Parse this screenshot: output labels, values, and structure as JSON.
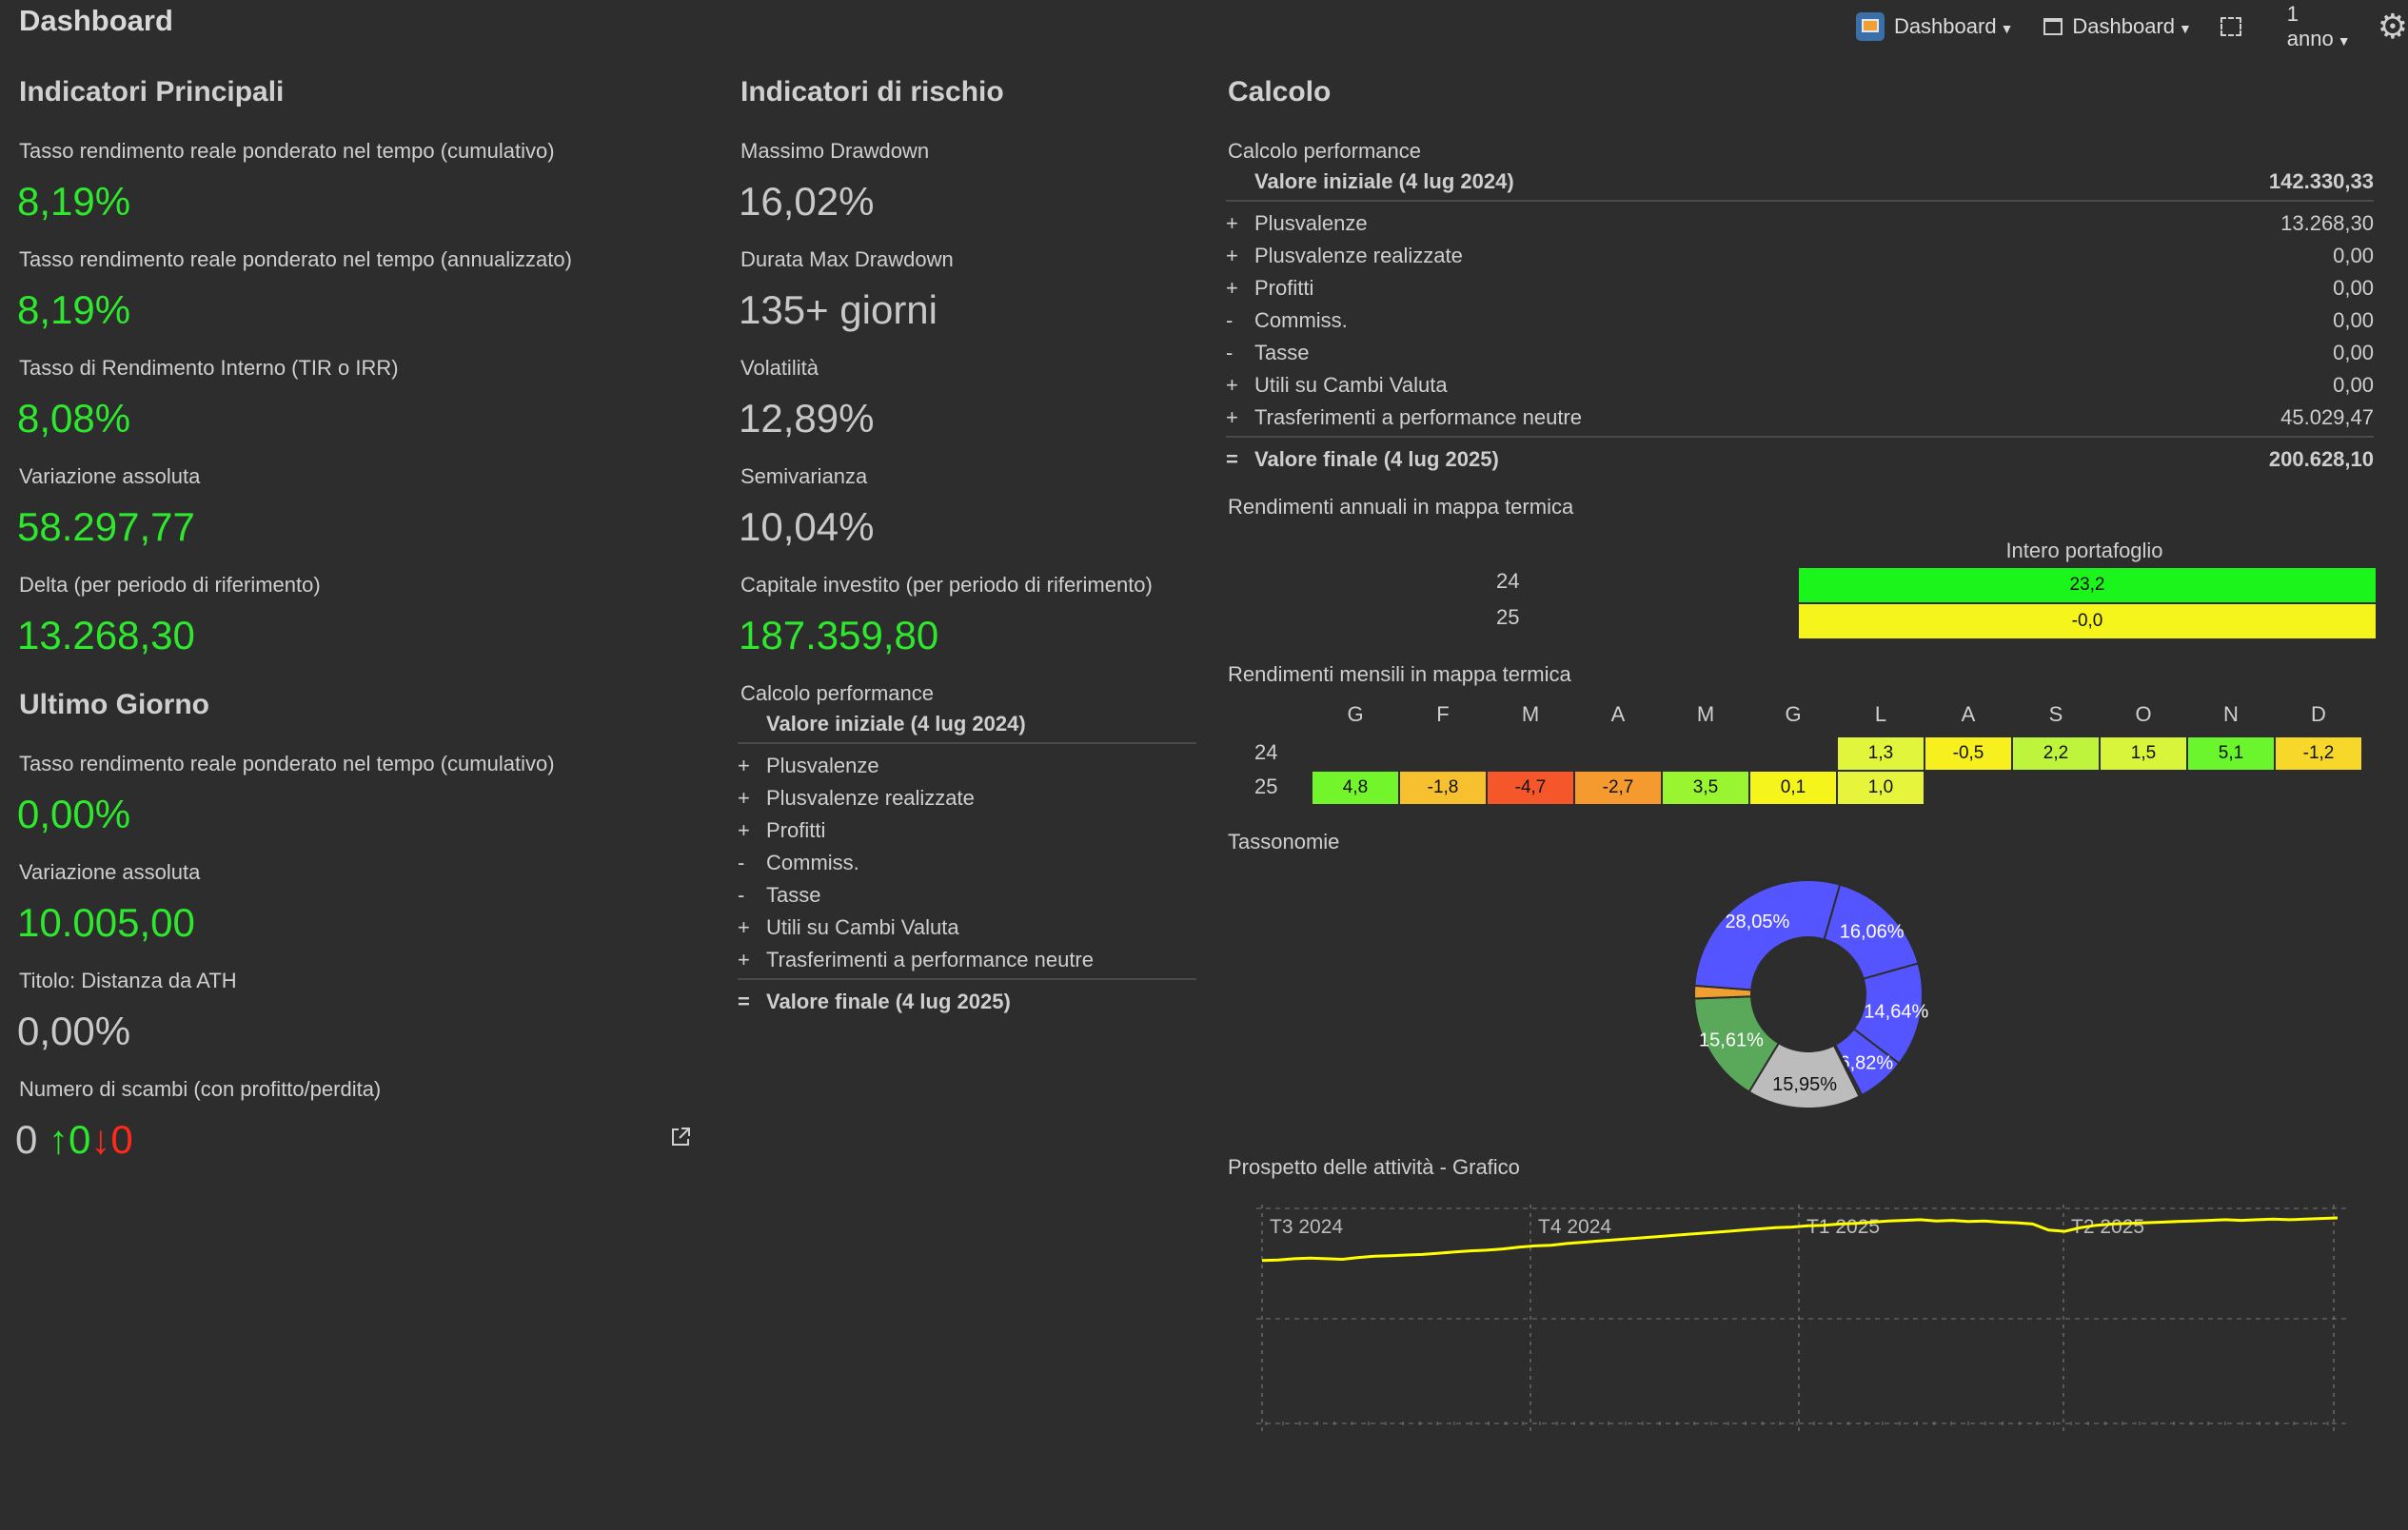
{
  "header": {
    "title": "Dashboard",
    "view1_label": "Dashboard",
    "view2_label": "Dashboard",
    "period_label": "1 anno"
  },
  "col1": {
    "section_title": "Indicatori Principali",
    "items": [
      {
        "label": "Tasso rendimento reale ponderato nel tempo (cumulativo)",
        "value": "8,19%"
      },
      {
        "label": "Tasso rendimento reale ponderato nel tempo (annualizzato)",
        "value": "8,19%"
      },
      {
        "label": "Tasso di Rendimento Interno (TIR o IRR)",
        "value": "8,08%"
      },
      {
        "label": "Variazione assoluta",
        "value": "58.297,77"
      },
      {
        "label": "Delta (per periodo di riferimento)",
        "value": "13.268,30"
      }
    ],
    "section2_title": "Ultimo Giorno",
    "items2": [
      {
        "label": "Tasso rendimento reale ponderato nel tempo (cumulativo)",
        "value": "0,00%"
      },
      {
        "label": "Variazione assoluta",
        "value": "10.005,00"
      },
      {
        "label": "Titolo: Distanza da ATH",
        "value": "0,00%"
      },
      {
        "label": "Numero di scambi (con profitto/perdita)"
      }
    ],
    "trades": {
      "total": "0",
      "up": "↑0",
      "down": "↓0"
    }
  },
  "col2": {
    "section_title": "Indicatori di rischio",
    "items": [
      {
        "label": "Massimo Drawdown",
        "value": "16,02%"
      },
      {
        "label": "Durata Max Drawdown",
        "value": "135+ giorni"
      },
      {
        "label": "Volatilità",
        "value": "12,89%"
      },
      {
        "label": "Semivarianza",
        "value": "10,04%"
      },
      {
        "label": "Capitale investito (per periodo di riferimento)",
        "value": "187.359,80"
      }
    ],
    "perf_title": "Calcolo performance"
  },
  "perf": {
    "initial": {
      "label": "Valore iniziale (4 lug 2024)",
      "value": "142.330,33"
    },
    "rows": [
      {
        "sign": "+",
        "label": "Plusvalenze",
        "value": "13.268,30"
      },
      {
        "sign": "+",
        "label": "Plusvalenze realizzate",
        "value": "0,00"
      },
      {
        "sign": "+",
        "label": "Profitti",
        "value": "0,00"
      },
      {
        "sign": "-",
        "label": "Commiss.",
        "value": "0,00"
      },
      {
        "sign": "-",
        "label": "Tasse",
        "value": "0,00"
      },
      {
        "sign": "+",
        "label": "Utili su Cambi Valuta",
        "value": "0,00"
      },
      {
        "sign": "+",
        "label": "Trasferimenti a performance neutre",
        "value": "45.029,47"
      }
    ],
    "final": {
      "sign": "=",
      "label": "Valore finale (4 lug 2025)",
      "value": "200.628,10"
    }
  },
  "col3": {
    "section_title": "Calcolo",
    "perf_title": "Calcolo performance",
    "annual_title": "Rendimenti annuali in mappa termica",
    "annual_header": "Intero portafoglio",
    "annual_rows": [
      {
        "year": "24",
        "value": "23,2",
        "color": "#1cf51c"
      },
      {
        "year": "25",
        "value": "-0,0",
        "color": "#f5f51c"
      }
    ],
    "monthly_title": "Rendimenti mensili in mappa termica",
    "months": [
      "G",
      "F",
      "M",
      "A",
      "M",
      "G",
      "L",
      "A",
      "S",
      "O",
      "N",
      "D"
    ],
    "monthly_rows": [
      {
        "year": "24",
        "cells": [
          null,
          null,
          null,
          null,
          null,
          null,
          {
            "v": "1,3",
            "c": "#e0f53c"
          },
          {
            "v": "-0,5",
            "c": "#f7f01e"
          },
          {
            "v": "2,2",
            "c": "#bef53c"
          },
          {
            "v": "1,5",
            "c": "#d8f53c"
          },
          {
            "v": "5,1",
            "c": "#6af52c"
          },
          {
            "v": "-1,2",
            "c": "#f7d82a"
          }
        ]
      },
      {
        "year": "25",
        "cells": [
          {
            "v": "4,8",
            "c": "#72f52a"
          },
          {
            "v": "-1,8",
            "c": "#f7c02e"
          },
          {
            "v": "-4,7",
            "c": "#f5562a"
          },
          {
            "v": "-2,7",
            "c": "#f59a2e"
          },
          {
            "v": "3,5",
            "c": "#98f530"
          },
          {
            "v": "0,1",
            "c": "#f5f51c"
          },
          {
            "v": "1,0",
            "c": "#e6f53c"
          },
          null,
          null,
          null,
          null,
          null
        ]
      }
    ],
    "taxonomy_title": "Tassonomie",
    "activity_title": "Prospetto delle attività - Grafico"
  },
  "donut": {
    "slices": [
      {
        "value": 16.06,
        "label": "16,06%",
        "color": "#5555ff"
      },
      {
        "value": 14.64,
        "label": "14,64%",
        "color": "#5555ff"
      },
      {
        "value": 6.82,
        "label": "6,82%",
        "color": "#5555ff"
      },
      {
        "value": 0.4,
        "label": "",
        "color": "#3a3a3a"
      },
      {
        "value": 15.95,
        "label": "15,95%",
        "color": "#bcbcbc"
      },
      {
        "value": 15.61,
        "label": "15,61%",
        "color": "#5aa85a"
      },
      {
        "value": 1.8,
        "label": "",
        "color": "#f0a030"
      },
      {
        "value": 28.05,
        "label": "28,05%",
        "color": "#5555ff"
      }
    ]
  },
  "chart_data": {
    "type": "line",
    "x_labels": [
      "T3 2024",
      "T4 2024",
      "T1 2025",
      "T2 2025"
    ],
    "series": [
      {
        "color": "#ffff00",
        "values": [
          0.3,
          0.31,
          0.33,
          0.34,
          0.33,
          0.32,
          0.35,
          0.37,
          0.38,
          0.39,
          0.4,
          0.42,
          0.44,
          0.46,
          0.47,
          0.49,
          0.52,
          0.54,
          0.55,
          0.58,
          0.6,
          0.62,
          0.64,
          0.66,
          0.68,
          0.7,
          0.72,
          0.74,
          0.76,
          0.78,
          0.8,
          0.82,
          0.84,
          0.85,
          0.87,
          0.88,
          0.9,
          0.91,
          0.93,
          0.95,
          0.96,
          0.97,
          0.95,
          0.96,
          0.94,
          0.95,
          0.93,
          0.92,
          0.9,
          0.8,
          0.78,
          0.84,
          0.88,
          0.9,
          0.91,
          0.92,
          0.93,
          0.94,
          0.95,
          0.96,
          0.97,
          0.96,
          0.97,
          0.98,
          0.97,
          0.98,
          0.99,
          1.0
        ]
      }
    ]
  }
}
